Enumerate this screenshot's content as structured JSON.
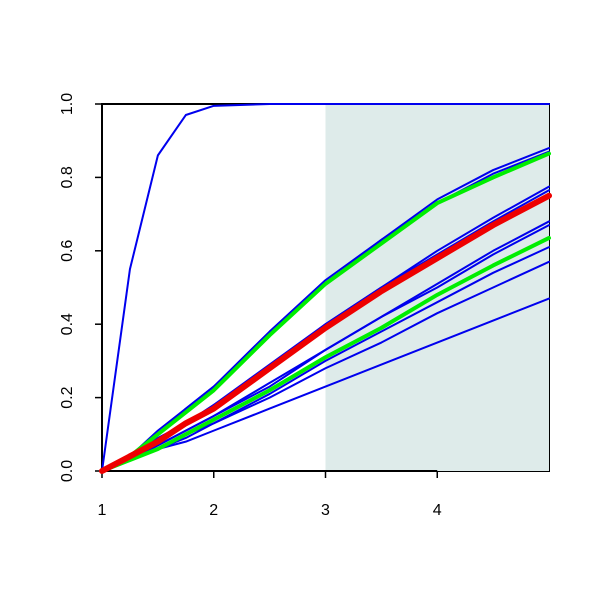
{
  "chart_data": {
    "type": "line",
    "x": [
      1,
      1.25,
      1.5,
      1.75,
      2,
      2.5,
      3,
      3.5,
      4,
      4.5,
      5
    ],
    "xlim": [
      1,
      5
    ],
    "ylim": [
      0,
      1
    ],
    "xticks": [
      1,
      2,
      3,
      4
    ],
    "yticks": [
      {
        "value": 0,
        "label": "0.0"
      },
      0.2,
      0.4,
      0.6,
      0.8,
      {
        "value": 1,
        "label": "1.0"
      }
    ],
    "shaded_region": {
      "x": [
        3,
        5
      ],
      "color": "#deebea"
    },
    "series": [
      {
        "color": "#0000ee",
        "values": [
          0,
          0.55,
          0.86,
          0.97,
          0.995,
          1,
          1,
          1,
          1,
          1,
          1
        ]
      },
      {
        "color": "#0000ee",
        "values": [
          0,
          0.04,
          0.11,
          0.17,
          0.23,
          0.38,
          0.52,
          0.63,
          0.74,
          0.82,
          0.88
        ]
      },
      {
        "color": "#0000ee",
        "values": [
          0,
          0.04,
          0.1,
          0.17,
          0.23,
          0.37,
          0.51,
          0.63,
          0.73,
          0.81,
          0.87
        ]
      },
      {
        "color": "#0000ee",
        "values": [
          0,
          0.04,
          0.09,
          0.13,
          0.18,
          0.29,
          0.4,
          0.5,
          0.6,
          0.69,
          0.775
        ]
      },
      {
        "color": "#0000ee",
        "values": [
          0,
          0.04,
          0.08,
          0.13,
          0.18,
          0.28,
          0.4,
          0.5,
          0.59,
          0.68,
          0.765
        ]
      },
      {
        "color": "#0000ee",
        "values": [
          0,
          0.03,
          0.07,
          0.11,
          0.15,
          0.24,
          0.33,
          0.42,
          0.51,
          0.6,
          0.68
        ]
      },
      {
        "color": "#0000ee",
        "values": [
          0,
          0.03,
          0.07,
          0.11,
          0.15,
          0.23,
          0.33,
          0.42,
          0.5,
          0.59,
          0.67
        ]
      },
      {
        "color": "#0000ee",
        "values": [
          0,
          0.03,
          0.06,
          0.1,
          0.13,
          0.21,
          0.3,
          0.38,
          0.46,
          0.54,
          0.61
        ]
      },
      {
        "color": "#0000ee",
        "values": [
          0,
          0.03,
          0.06,
          0.09,
          0.13,
          0.2,
          0.28,
          0.35,
          0.43,
          0.5,
          0.57
        ]
      },
      {
        "color": "#0000ee",
        "values": [
          0,
          0.03,
          0.06,
          0.08,
          0.11,
          0.17,
          0.23,
          0.29,
          0.35,
          0.41,
          0.47
        ]
      },
      {
        "color": "#00ee00",
        "width": 4,
        "values": [
          0,
          0.04,
          0.1,
          0.16,
          0.22,
          0.37,
          0.51,
          0.62,
          0.73,
          0.8,
          0.865
        ]
      },
      {
        "color": "#00ee00",
        "width": 4,
        "values": [
          0,
          0.03,
          0.06,
          0.1,
          0.14,
          0.22,
          0.31,
          0.39,
          0.48,
          0.56,
          0.635
        ]
      },
      {
        "color": "#ee0000",
        "width": 6,
        "values": [
          0,
          0.04,
          0.08,
          0.13,
          0.17,
          0.28,
          0.39,
          0.49,
          0.58,
          0.67,
          0.75
        ]
      }
    ]
  }
}
